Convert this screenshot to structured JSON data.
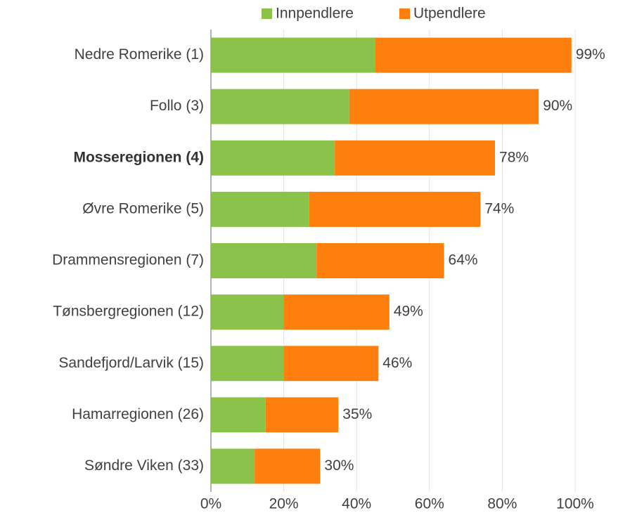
{
  "chart_data": {
    "type": "stacked-barh",
    "categories": [
      "Nedre Romerike (1)",
      "Follo (3)",
      "Mosseregionen (4)",
      "Øvre Romerike (5)",
      "Drammensregionen (7)",
      "Tønsbergregionen (12)",
      "Sandefjord/Larvik (15)",
      "Hamarregionen (26)",
      "Søndre Viken (33)"
    ],
    "highlight_index": 2,
    "series": [
      {
        "name": "Innpendlere",
        "color": "#8bc34a",
        "values": [
          45,
          38,
          34,
          27,
          29,
          20,
          20,
          15,
          12
        ]
      },
      {
        "name": "Utpendlere",
        "color": "#ff7f0e",
        "values": [
          54,
          52,
          44,
          47,
          35,
          29,
          26,
          20,
          18
        ]
      }
    ],
    "totals": [
      99,
      90,
      78,
      74,
      64,
      49,
      46,
      35,
      30
    ],
    "total_labels": [
      "99%",
      "90%",
      "78%",
      "74%",
      "64%",
      "49%",
      "46%",
      "35%",
      "30%"
    ],
    "xlim": [
      0,
      100
    ],
    "xticks": [
      {
        "value": 0,
        "label": "0%"
      },
      {
        "value": 20,
        "label": "20%"
      },
      {
        "value": 40,
        "label": "40%"
      },
      {
        "value": 60,
        "label": "60%"
      },
      {
        "value": 80,
        "label": "80%"
      },
      {
        "value": 100,
        "label": "100%"
      }
    ],
    "grid": true,
    "legend": "top"
  }
}
